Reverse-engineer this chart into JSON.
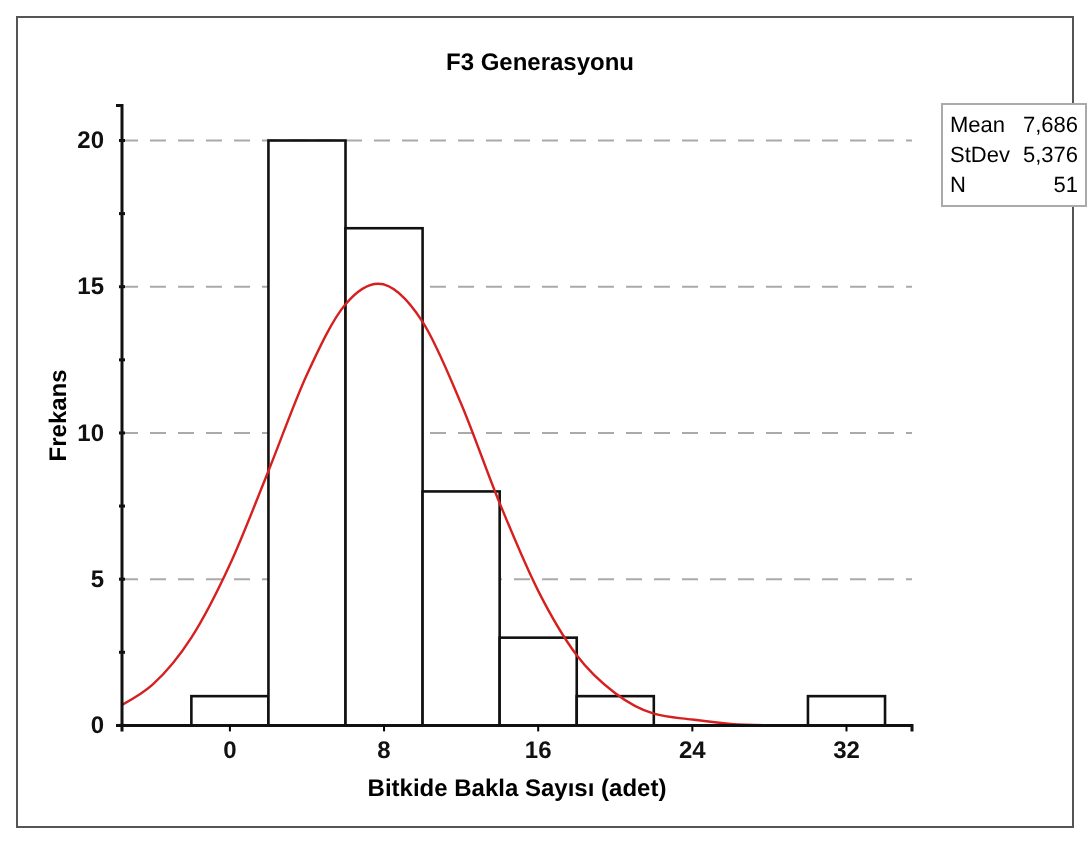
{
  "chart_data": {
    "type": "histogram",
    "title": "F3 Generasyonu",
    "xlabel": "Bitkide Bakla Sayısı (adet)",
    "ylabel": "Frekans",
    "bins": [
      -2,
      2,
      6,
      10,
      14,
      18,
      22,
      26,
      30,
      34
    ],
    "values": [
      1,
      20,
      17,
      8,
      3,
      1,
      0,
      0,
      1
    ],
    "color": "#ffffff",
    "series": [
      {
        "type": "line",
        "color": "#d62020",
        "x": [
          -5.6,
          -4,
          -2,
          0,
          2,
          4,
          6,
          7.7,
          10,
          12,
          14,
          16,
          18,
          20,
          22,
          24,
          26,
          28
        ],
        "values": [
          0.7,
          1.4,
          3.0,
          5.5,
          8.7,
          12.0,
          14.4,
          15.1,
          13.8,
          11.0,
          7.6,
          4.6,
          2.4,
          1.1,
          0.4,
          0.2,
          0.05,
          0
        ]
      }
    ],
    "xlim": [
      -5.6,
      35.4
    ],
    "xticks": [
      0,
      8,
      16,
      24,
      32
    ],
    "ylim": [
      0,
      21.2
    ],
    "yticks": [
      0,
      {
        "value": 2.5,
        "label": null
      },
      5,
      {
        "value": 7.5,
        "label": null
      },
      10,
      {
        "value": 12.5,
        "label": null
      },
      15,
      {
        "value": 17.5,
        "label": null
      },
      20
    ],
    "grid": "y",
    "annotations": [
      "Mean 7,686",
      "StDev 5,376",
      "N 51"
    ]
  }
}
